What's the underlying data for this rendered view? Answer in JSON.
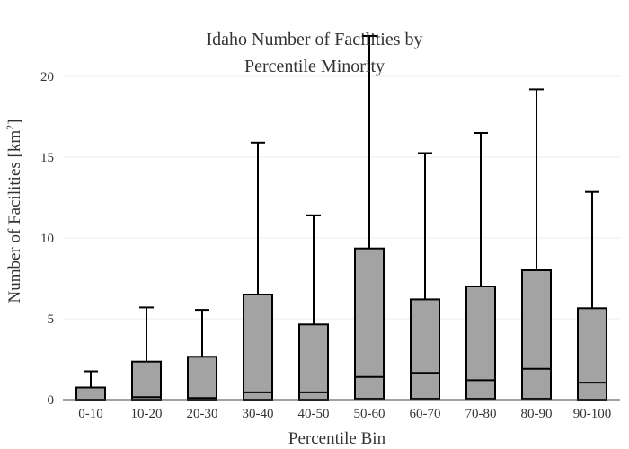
{
  "chart_data": {
    "type": "box",
    "title_lines": [
      "Idaho Number of Facilities by",
      "Percentile Minority"
    ],
    "xlabel": "Percentile Bin",
    "ylabel": "Number of Facilities  [km",
    "ylabel_sup": "2",
    "ylabel_close": "]",
    "ylim": [
      0,
      22.5
    ],
    "yticks": [
      0,
      5,
      10,
      15,
      20
    ],
    "ytick_labels": [
      "0",
      "5",
      "10",
      "15",
      "20"
    ],
    "grid": "horizontal",
    "categories": [
      "0-10",
      "10-20",
      "20-30",
      "30-40",
      "40-50",
      "50-60",
      "60-70",
      "70-80",
      "80-90",
      "90-100"
    ],
    "boxes": [
      {
        "min": 0,
        "q1": 0.0,
        "median": 0.0,
        "q3": 0.75,
        "max": 1.75
      },
      {
        "min": 0,
        "q1": 0.0,
        "median": 0.15,
        "q3": 2.35,
        "max": 5.7
      },
      {
        "min": 0,
        "q1": 0.0,
        "median": 0.1,
        "q3": 2.65,
        "max": 5.55
      },
      {
        "min": 0,
        "q1": 0.0,
        "median": 0.45,
        "q3": 6.5,
        "max": 15.9
      },
      {
        "min": 0,
        "q1": 0.0,
        "median": 0.45,
        "q3": 4.65,
        "max": 11.4
      },
      {
        "min": 0,
        "q1": 0.05,
        "median": 1.4,
        "q3": 9.35,
        "max": 22.5
      },
      {
        "min": 0,
        "q1": 0.05,
        "median": 1.65,
        "q3": 6.2,
        "max": 15.25
      },
      {
        "min": 0,
        "q1": 0.05,
        "median": 1.2,
        "q3": 7.0,
        "max": 16.5
      },
      {
        "min": 0,
        "q1": 0.05,
        "median": 1.9,
        "q3": 8.0,
        "max": 19.2
      },
      {
        "min": 0,
        "q1": 0.0,
        "median": 1.05,
        "q3": 5.65,
        "max": 12.85
      }
    ],
    "colors": {
      "box_fill": "#a3a3a3",
      "box_stroke": "#000000",
      "grid": "#eeeeee"
    }
  }
}
